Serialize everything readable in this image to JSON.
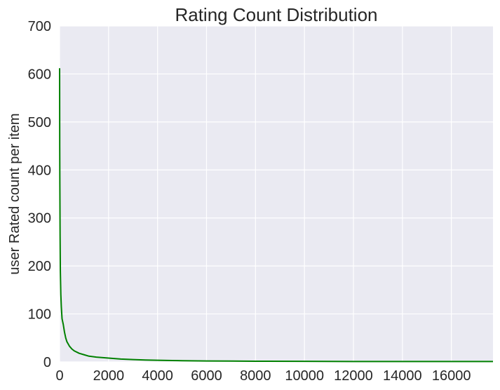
{
  "chart_data": {
    "type": "line",
    "title": "Rating Count Distribution",
    "xlabel": "",
    "ylabel": "user Rated count per item",
    "xlim": [
      0,
      17700
    ],
    "ylim": [
      0,
      700
    ],
    "x_ticks": [
      "0",
      "2000",
      "4000",
      "6000",
      "8000",
      "10000",
      "12000",
      "14000",
      "16000"
    ],
    "x_tick_values": [
      0,
      2000,
      4000,
      6000,
      8000,
      10000,
      12000,
      14000,
      16000
    ],
    "y_ticks": [
      "0",
      "100",
      "200",
      "300",
      "400",
      "500",
      "600",
      "700"
    ],
    "y_tick_values": [
      0,
      100,
      200,
      300,
      400,
      500,
      600,
      700
    ],
    "grid": true,
    "legend": "none",
    "series": [
      {
        "color": "#008000",
        "x": [
          0,
          5,
          10,
          20,
          30,
          50,
          70,
          100,
          150,
          200,
          250,
          300,
          400,
          500,
          600,
          800,
          1000,
          1200,
          1500,
          2000,
          2500,
          3000,
          3500,
          4000,
          4600,
          5000,
          6000,
          7000,
          8000,
          10000,
          12000,
          14000,
          16000,
          17700
        ],
        "y": [
          612,
          450,
          370,
          260,
          190,
          140,
          115,
          90,
          78,
          62,
          50,
          42,
          33,
          27,
          23,
          18,
          15,
          12,
          10,
          8,
          6,
          5,
          4,
          3.5,
          3,
          2.5,
          2,
          1.8,
          1.5,
          1.2,
          1,
          1,
          1,
          1
        ]
      }
    ],
    "colors": {
      "plot_background": "#EAEAF2",
      "grid": "#FFFFFF",
      "line": "#008000",
      "text": "#262626"
    }
  }
}
